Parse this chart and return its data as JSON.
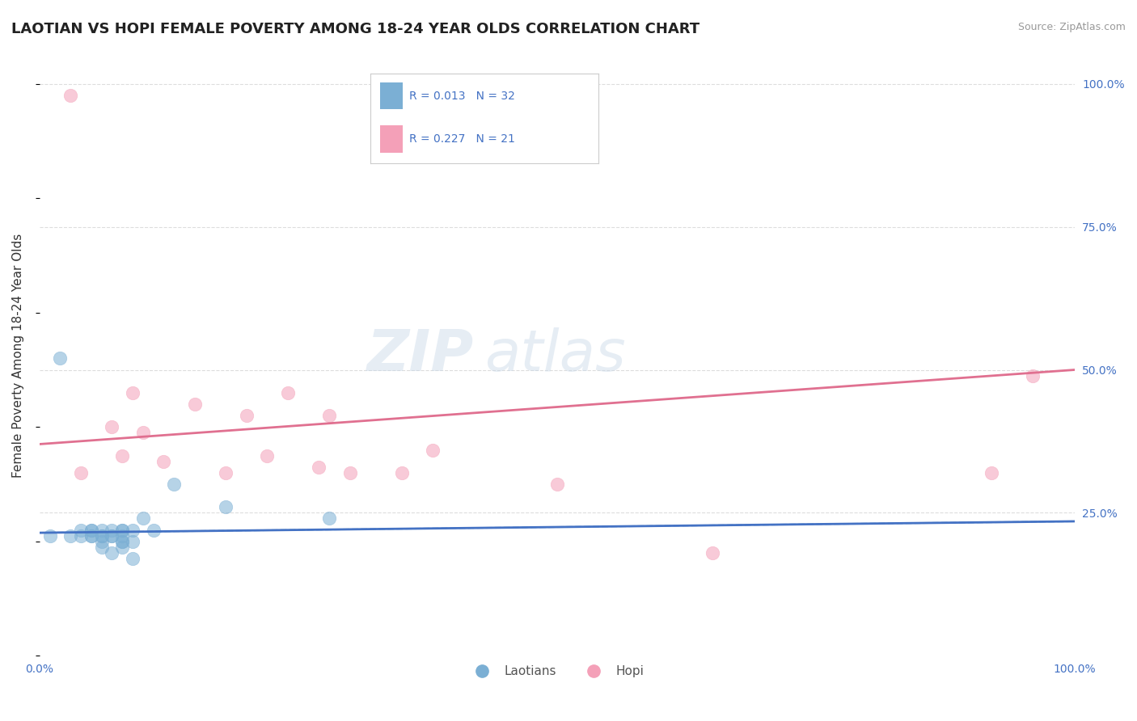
{
  "title": "LAOTIAN VS HOPI FEMALE POVERTY AMONG 18-24 YEAR OLDS CORRELATION CHART",
  "source": "Source: ZipAtlas.com",
  "ylabel": "Female Poverty Among 18-24 Year Olds",
  "xlim": [
    0.0,
    1.0
  ],
  "ylim": [
    0.0,
    1.05
  ],
  "y_tick_values": [
    1.0,
    0.75,
    0.5,
    0.25
  ],
  "y_tick_labels": [
    "100.0%",
    "75.0%",
    "50.0%",
    "25.0%"
  ],
  "laotian_color": "#7bafd4",
  "hopi_color": "#f4a0b8",
  "laotian_line_color": "#4472c4",
  "hopi_line_color": "#e07090",
  "laotian_x": [
    0.01,
    0.02,
    0.03,
    0.04,
    0.04,
    0.05,
    0.05,
    0.05,
    0.05,
    0.06,
    0.06,
    0.06,
    0.06,
    0.06,
    0.07,
    0.07,
    0.07,
    0.07,
    0.08,
    0.08,
    0.08,
    0.08,
    0.08,
    0.08,
    0.09,
    0.09,
    0.09,
    0.1,
    0.11,
    0.13,
    0.18,
    0.28
  ],
  "laotian_y": [
    0.21,
    0.52,
    0.21,
    0.21,
    0.22,
    0.21,
    0.21,
    0.22,
    0.22,
    0.19,
    0.2,
    0.21,
    0.21,
    0.22,
    0.18,
    0.21,
    0.21,
    0.22,
    0.19,
    0.2,
    0.2,
    0.21,
    0.22,
    0.22,
    0.17,
    0.2,
    0.22,
    0.24,
    0.22,
    0.3,
    0.26,
    0.24
  ],
  "hopi_x": [
    0.03,
    0.04,
    0.07,
    0.08,
    0.09,
    0.1,
    0.12,
    0.15,
    0.18,
    0.2,
    0.22,
    0.24,
    0.27,
    0.28,
    0.3,
    0.35,
    0.38,
    0.5,
    0.65,
    0.92,
    0.96
  ],
  "hopi_y": [
    0.98,
    0.32,
    0.4,
    0.35,
    0.46,
    0.39,
    0.34,
    0.44,
    0.32,
    0.42,
    0.35,
    0.46,
    0.33,
    0.42,
    0.32,
    0.32,
    0.36,
    0.3,
    0.18,
    0.32,
    0.49
  ],
  "hopi_line_start_y": 0.37,
  "hopi_line_end_y": 0.5,
  "laotian_line_start_y": 0.215,
  "laotian_line_end_y": 0.235,
  "background_color": "#ffffff",
  "grid_color": "#dddddd",
  "watermark_color": "#c8d8e8",
  "title_color": "#222222",
  "tick_color": "#4472c4",
  "label_color": "#333333",
  "source_color": "#999999",
  "title_fontsize": 13,
  "axis_label_fontsize": 11,
  "tick_fontsize": 10,
  "legend_fontsize": 11
}
